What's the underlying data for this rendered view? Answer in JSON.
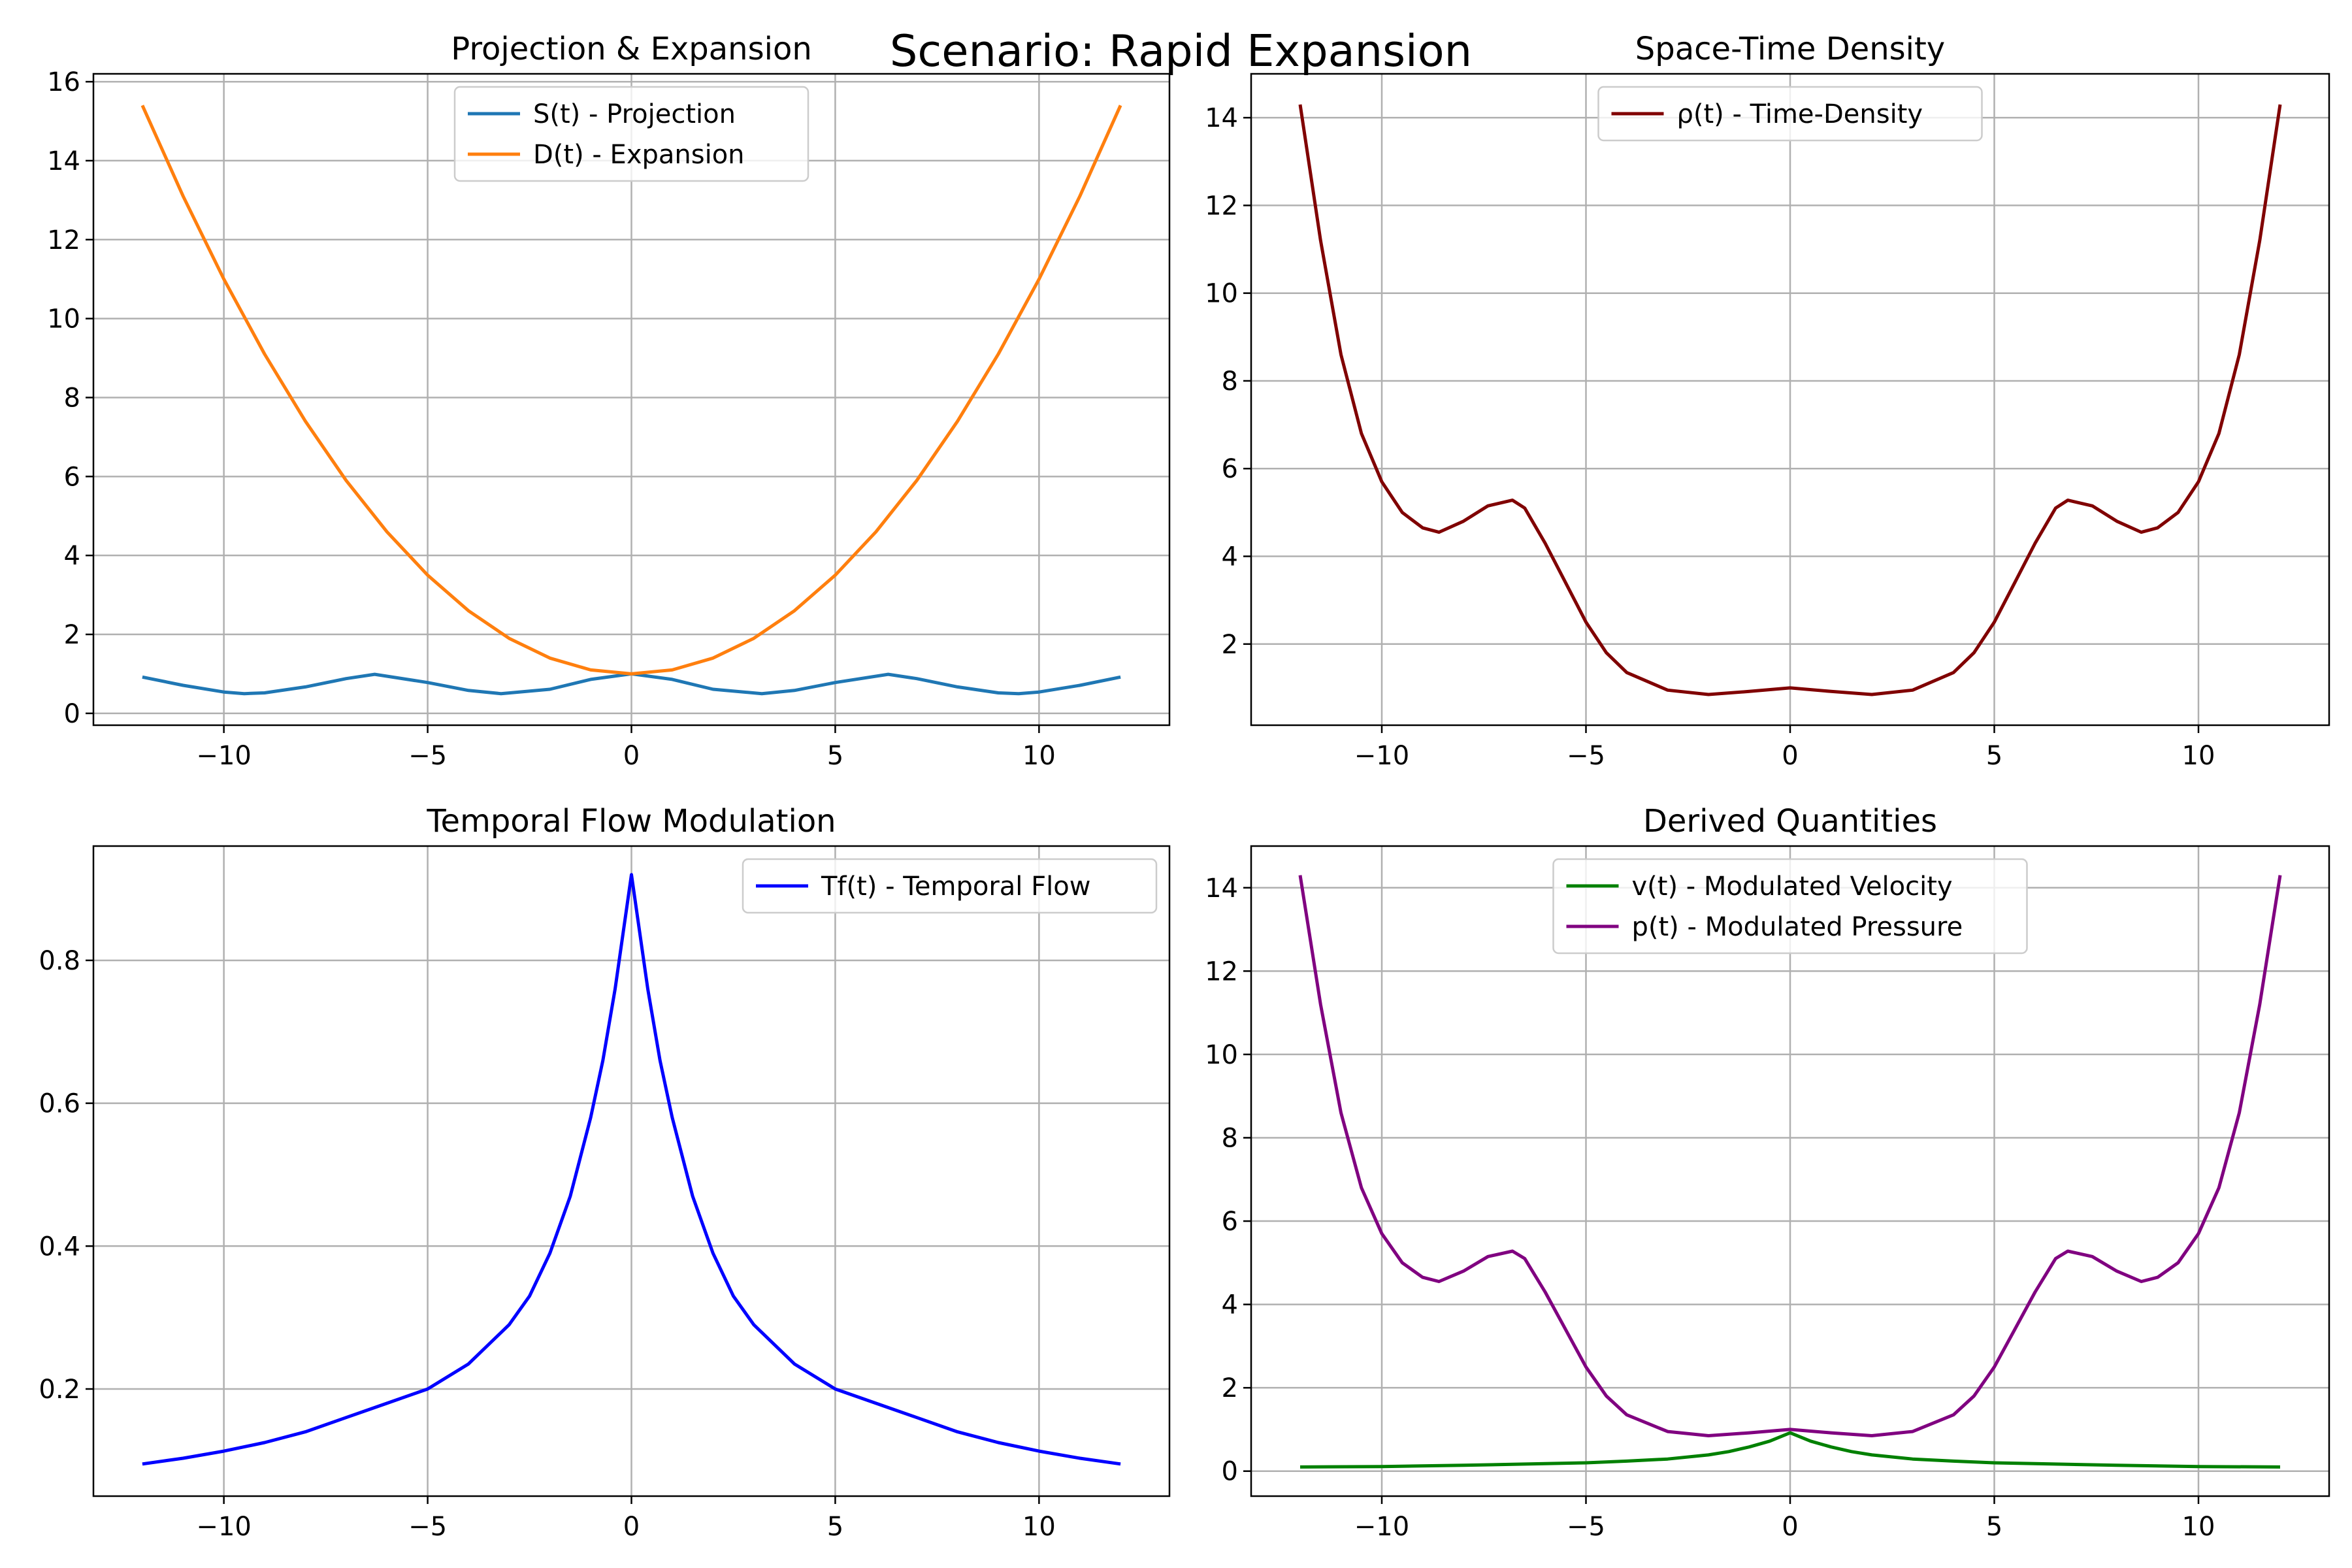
{
  "figure": {
    "title": "Scenario: Rapid Expansion"
  },
  "chart_data": [
    {
      "type": "line",
      "title": "Projection & Expansion",
      "xlim": [
        -13.2,
        13.2
      ],
      "ylim": [
        -0.3,
        16.2
      ],
      "xticks": [
        -10,
        -5,
        0,
        5,
        10
      ],
      "yticks": [
        0,
        2,
        4,
        6,
        8,
        10,
        12,
        14,
        16
      ],
      "grid": true,
      "legend": "upper center",
      "series": [
        {
          "name": "S(t) - Projection",
          "color": "#1f77b4",
          "x": [
            -12,
            -11,
            -10,
            -9.5,
            -9,
            -8,
            -7,
            -6.3,
            -5,
            -4,
            -3.2,
            -2,
            -1,
            0,
            1,
            2,
            3.2,
            4,
            5,
            6.3,
            7,
            8,
            9,
            9.5,
            10,
            11,
            12
          ],
          "y": [
            0.92,
            0.71,
            0.54,
            0.5,
            0.52,
            0.67,
            0.88,
            0.99,
            0.78,
            0.58,
            0.5,
            0.61,
            0.86,
            1.0,
            0.86,
            0.61,
            0.5,
            0.58,
            0.78,
            0.99,
            0.88,
            0.67,
            0.52,
            0.5,
            0.54,
            0.71,
            0.92
          ]
        },
        {
          "name": "D(t) - Expansion",
          "color": "#ff7f0e",
          "x": [
            -12,
            -11,
            -10,
            -9,
            -8,
            -7,
            -6,
            -5,
            -4,
            -3,
            -2,
            -1,
            0,
            1,
            2,
            3,
            4,
            5,
            6,
            7,
            8,
            9,
            10,
            11,
            12
          ],
          "y": [
            15.4,
            13.1,
            11.0,
            9.1,
            7.4,
            5.9,
            4.6,
            3.5,
            2.6,
            1.9,
            1.4,
            1.1,
            1.0,
            1.1,
            1.4,
            1.9,
            2.6,
            3.5,
            4.6,
            5.9,
            7.4,
            9.1,
            11.0,
            13.1,
            15.4
          ]
        }
      ]
    },
    {
      "type": "line",
      "title": "Space-Time Density",
      "xlim": [
        -13.2,
        13.2
      ],
      "ylim": [
        0.15,
        15.0
      ],
      "xticks": [
        -10,
        -5,
        0,
        5,
        10
      ],
      "yticks": [
        2,
        4,
        6,
        8,
        10,
        12,
        14
      ],
      "grid": true,
      "legend": "upper center",
      "series": [
        {
          "name": "ρ(t) - Time-Density",
          "color": "#800000",
          "x": [
            -12,
            -11.5,
            -11,
            -10.5,
            -10,
            -9.5,
            -9,
            -8.6,
            -8,
            -7.4,
            -6.8,
            -6.5,
            -6,
            -5.5,
            -5,
            -4.5,
            -4,
            -3,
            -2,
            -1,
            0,
            1,
            2,
            3,
            4,
            4.5,
            5,
            5.5,
            6,
            6.5,
            6.8,
            7.4,
            8,
            8.6,
            9,
            9.5,
            10,
            10.5,
            11,
            11.5,
            12
          ],
          "y": [
            14.3,
            11.2,
            8.6,
            6.8,
            5.7,
            5.0,
            4.65,
            4.55,
            4.8,
            5.15,
            5.28,
            5.1,
            4.3,
            3.4,
            2.5,
            1.8,
            1.35,
            0.95,
            0.85,
            0.92,
            1.0,
            0.92,
            0.85,
            0.95,
            1.35,
            1.8,
            2.5,
            3.4,
            4.3,
            5.1,
            5.28,
            5.15,
            4.8,
            4.55,
            4.65,
            5.0,
            5.7,
            6.8,
            8.6,
            11.2,
            14.3
          ]
        }
      ]
    },
    {
      "type": "line",
      "title": "Temporal Flow Modulation",
      "xlim": [
        -13.2,
        13.2
      ],
      "ylim": [
        0.05,
        0.96
      ],
      "xticks": [
        -10,
        -5,
        0,
        5,
        10
      ],
      "yticks": [
        0.2,
        0.4,
        0.6,
        0.8
      ],
      "grid": true,
      "legend": "upper right",
      "series": [
        {
          "name": "Tf(t) - Temporal Flow",
          "color": "#0000ff",
          "x": [
            -12,
            -11,
            -10,
            -9,
            -8,
            -7,
            -6,
            -5,
            -4,
            -3,
            -2.5,
            -2,
            -1.5,
            -1,
            -0.7,
            -0.4,
            -0.2,
            0,
            0.2,
            0.4,
            0.7,
            1,
            1.5,
            2,
            2.5,
            3,
            4,
            5,
            6,
            7,
            8,
            9,
            10,
            11,
            12
          ],
          "y": [
            0.095,
            0.103,
            0.113,
            0.125,
            0.14,
            0.16,
            0.18,
            0.2,
            0.235,
            0.29,
            0.33,
            0.39,
            0.47,
            0.58,
            0.66,
            0.76,
            0.84,
            0.92,
            0.84,
            0.76,
            0.66,
            0.58,
            0.47,
            0.39,
            0.33,
            0.29,
            0.235,
            0.2,
            0.18,
            0.16,
            0.14,
            0.125,
            0.113,
            0.103,
            0.095
          ]
        }
      ]
    },
    {
      "type": "line",
      "title": "Derived Quantities",
      "xlim": [
        -13.2,
        13.2
      ],
      "ylim": [
        -0.6,
        15.0
      ],
      "xticks": [
        -10,
        -5,
        0,
        5,
        10
      ],
      "yticks": [
        0,
        2,
        4,
        6,
        8,
        10,
        12,
        14
      ],
      "grid": true,
      "legend": "upper center",
      "series": [
        {
          "name": "v(t) - Modulated Velocity",
          "color": "#008000",
          "x": [
            -12,
            -10,
            -8,
            -6,
            -5,
            -4,
            -3,
            -2,
            -1.5,
            -1,
            -0.5,
            0,
            0.5,
            1,
            1.5,
            2,
            3,
            4,
            5,
            6,
            8,
            10,
            12
          ],
          "y": [
            0.1,
            0.11,
            0.14,
            0.18,
            0.2,
            0.24,
            0.29,
            0.39,
            0.47,
            0.58,
            0.72,
            0.92,
            0.72,
            0.58,
            0.47,
            0.39,
            0.29,
            0.24,
            0.2,
            0.18,
            0.14,
            0.11,
            0.1
          ]
        },
        {
          "name": "p(t) - Modulated Pressure",
          "color": "#800080",
          "x": [
            -12,
            -11.5,
            -11,
            -10.5,
            -10,
            -9.5,
            -9,
            -8.6,
            -8,
            -7.4,
            -6.8,
            -6.5,
            -6,
            -5.5,
            -5,
            -4.5,
            -4,
            -3,
            -2,
            -1,
            0,
            1,
            2,
            3,
            4,
            4.5,
            5,
            5.5,
            6,
            6.5,
            6.8,
            7.4,
            8,
            8.6,
            9,
            9.5,
            10,
            10.5,
            11,
            11.5,
            12
          ],
          "y": [
            14.3,
            11.2,
            8.6,
            6.8,
            5.7,
            5.0,
            4.65,
            4.55,
            4.8,
            5.15,
            5.28,
            5.1,
            4.3,
            3.4,
            2.5,
            1.8,
            1.35,
            0.95,
            0.85,
            0.92,
            1.0,
            0.92,
            0.85,
            0.95,
            1.35,
            1.8,
            2.5,
            3.4,
            4.3,
            5.1,
            5.28,
            5.15,
            4.8,
            4.55,
            4.65,
            5.0,
            5.7,
            6.8,
            8.6,
            11.2,
            14.3
          ]
        }
      ]
    }
  ]
}
